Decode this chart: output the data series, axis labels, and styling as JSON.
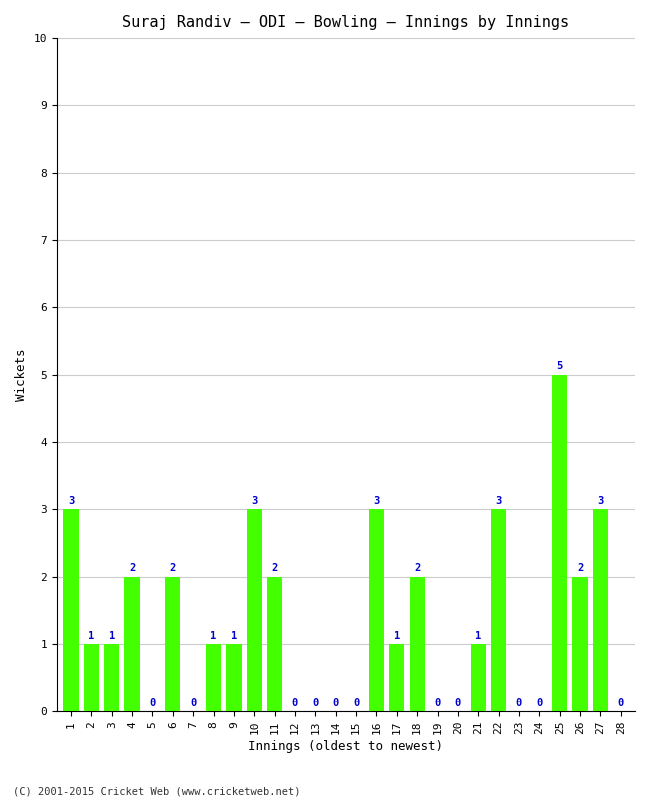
{
  "title": "Suraj Randiv – ODI – Bowling – Innings by Innings",
  "xlabel": "Innings (oldest to newest)",
  "ylabel": "Wickets",
  "innings": [
    1,
    2,
    3,
    4,
    5,
    6,
    7,
    8,
    9,
    10,
    11,
    12,
    13,
    14,
    15,
    16,
    17,
    18,
    19,
    20,
    21,
    22,
    23,
    24,
    25,
    26,
    27,
    28
  ],
  "wickets": [
    3,
    1,
    1,
    2,
    0,
    2,
    0,
    1,
    1,
    3,
    2,
    0,
    0,
    0,
    0,
    3,
    1,
    2,
    0,
    0,
    1,
    3,
    0,
    0,
    5,
    2,
    3,
    0
  ],
  "bar_color": "#44ff00",
  "label_color": "#0000cc",
  "background_color": "#ffffff",
  "ylim": [
    0,
    10
  ],
  "yticks": [
    0,
    1,
    2,
    3,
    4,
    5,
    6,
    7,
    8,
    9,
    10
  ],
  "grid_color": "#cccccc",
  "footer": "(C) 2001-2015 Cricket Web (www.cricketweb.net)",
  "title_fontsize": 11,
  "label_fontsize": 9,
  "tick_fontsize": 8,
  "annotation_fontsize": 7.5
}
